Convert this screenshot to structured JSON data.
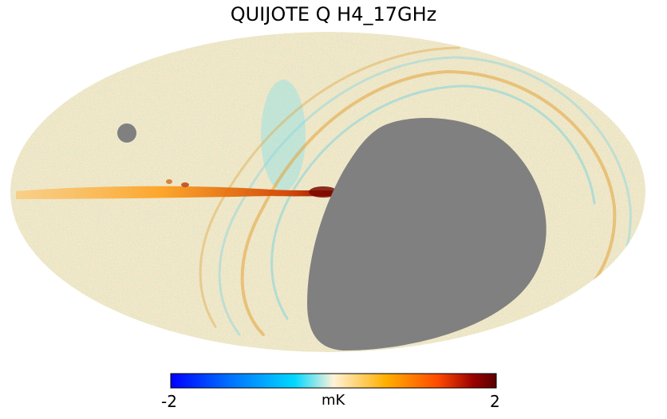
{
  "map": {
    "title": "QUIJOTE Q H4_17GHz",
    "projection": "mollweide",
    "background_color": "#f6e7c8",
    "masked_color": "#808080",
    "features": [
      "galactic-plane-emission",
      "north-polar-spur-arcs",
      "masked-region",
      "masked-hole"
    ]
  },
  "colorbar": {
    "min_label": "-2",
    "max_label": "2",
    "unit_label": "mK",
    "colormap": "planck",
    "stops": [
      "#0000ff",
      "#0070ff",
      "#00d8ff",
      "#fff2d8",
      "#ffb000",
      "#ff4a00",
      "#9a0000",
      "#5a0000"
    ]
  }
}
